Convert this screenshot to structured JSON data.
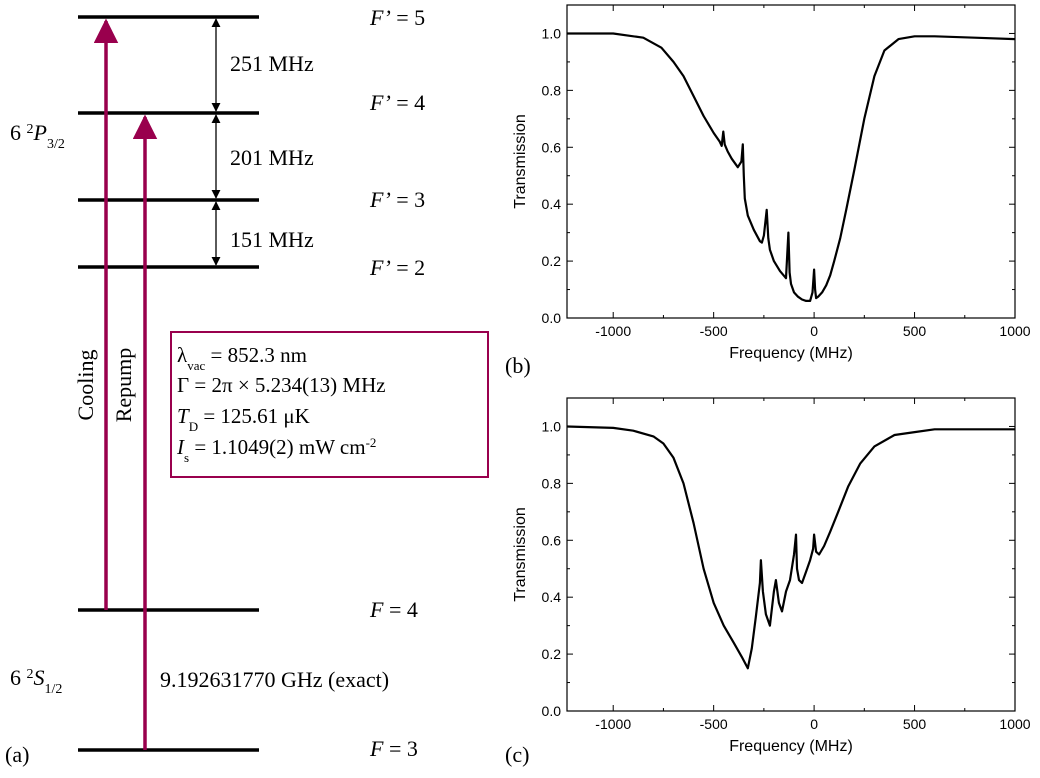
{
  "diagram": {
    "panel_label": "(a)",
    "excited_state": {
      "prefix": "6 ",
      "sup": "2",
      "letter": "P",
      "sub": "3/2"
    },
    "ground_state": {
      "prefix": "6 ",
      "sup": "2",
      "letter": "S",
      "sub": "1/2"
    },
    "levels": [
      {
        "name": "F’",
        "value": "5"
      },
      {
        "name": "F’",
        "value": "4"
      },
      {
        "name": "F’",
        "value": "3"
      },
      {
        "name": "F’",
        "value": "2"
      },
      {
        "name": "F",
        "value": "4"
      },
      {
        "name": "F",
        "value": "3"
      }
    ],
    "splittings": [
      "251 MHz",
      "201 MHz",
      "151 MHz"
    ],
    "ground_splitting": "9.192631770 GHz (exact)",
    "transitions": [
      "Cooling",
      "Repump"
    ],
    "colors": {
      "transition": "#99004d",
      "box": "#99004d",
      "level": "#000000"
    },
    "info_box": [
      {
        "sym": "λ",
        "sub": "vac",
        "eq": " = ",
        "val": "852.3 nm",
        "italic": false
      },
      {
        "sym": "Γ",
        "sub": "",
        "eq": "    = ",
        "val": "2π × 5.234(13) MHz",
        "italic": false
      },
      {
        "sym": "T",
        "sub": "D",
        "eq": " = ",
        "val": "125.61 μK",
        "italic": true
      },
      {
        "sym": "I",
        "sub": "s",
        "eq": "   = ",
        "val": "1.1049(2) mW cm",
        "sup": "-2",
        "italic": true
      }
    ]
  },
  "chart_data": [
    {
      "panel_label": "(b)",
      "type": "line",
      "xlabel": "Frequency (MHz)",
      "ylabel": "Transmission",
      "xlim": [
        -1230,
        1000
      ],
      "ylim": [
        0,
        1.1
      ],
      "xticks": [
        "-1000",
        "-500",
        "0",
        "500",
        "1000"
      ],
      "yticks": [
        "0.0",
        "0.2",
        "0.4",
        "0.6",
        "0.8",
        "1.0"
      ],
      "grid": false,
      "series": [
        {
          "x": [
            -1230,
            -1000,
            -850,
            -760,
            -700,
            -650,
            -600,
            -550,
            -500,
            -470,
            -460,
            -452,
            -445,
            -430,
            -410,
            -380,
            -362,
            -355,
            -350,
            -345,
            -330,
            -300,
            -270,
            -260,
            -250,
            -236,
            -228,
            -220,
            -200,
            -170,
            -140,
            -128,
            -122,
            -115,
            -100,
            -80,
            -60,
            -40,
            -20,
            -8,
            0,
            5,
            10,
            20,
            40,
            60,
            80,
            100,
            130,
            160,
            200,
            250,
            300,
            350,
            420,
            500,
            600,
            800,
            1000
          ],
          "y": [
            1.0,
            1.0,
            0.985,
            0.95,
            0.9,
            0.85,
            0.78,
            0.71,
            0.65,
            0.62,
            0.605,
            0.655,
            0.61,
            0.585,
            0.56,
            0.53,
            0.55,
            0.61,
            0.5,
            0.42,
            0.36,
            0.31,
            0.27,
            0.265,
            0.29,
            0.38,
            0.28,
            0.24,
            0.2,
            0.165,
            0.14,
            0.3,
            0.16,
            0.12,
            0.09,
            0.075,
            0.065,
            0.06,
            0.06,
            0.09,
            0.17,
            0.1,
            0.07,
            0.075,
            0.09,
            0.115,
            0.15,
            0.2,
            0.28,
            0.38,
            0.52,
            0.7,
            0.85,
            0.94,
            0.98,
            0.99,
            0.99,
            0.985,
            0.98
          ]
        }
      ]
    },
    {
      "panel_label": "(c)",
      "type": "line",
      "xlabel": "Frequency (MHz)",
      "ylabel": "Transmission",
      "xlim": [
        -1230,
        1000
      ],
      "ylim": [
        0,
        1.1
      ],
      "xticks": [
        "-1000",
        "-500",
        "0",
        "500",
        "1000"
      ],
      "yticks": [
        "0.0",
        "0.2",
        "0.4",
        "0.6",
        "0.8",
        "1.0"
      ],
      "grid": false,
      "series": [
        {
          "x": [
            -1230,
            -1000,
            -900,
            -800,
            -750,
            -700,
            -650,
            -600,
            -550,
            -500,
            -450,
            -400,
            -360,
            -330,
            -310,
            -290,
            -270,
            -265,
            -255,
            -240,
            -220,
            -200,
            -190,
            -175,
            -160,
            -140,
            -120,
            -100,
            -90,
            -85,
            -75,
            -60,
            -40,
            -20,
            -5,
            0,
            10,
            25,
            50,
            80,
            120,
            170,
            230,
            300,
            400,
            500,
            600,
            800,
            1000
          ],
          "y": [
            1.0,
            0.995,
            0.985,
            0.965,
            0.94,
            0.89,
            0.8,
            0.66,
            0.5,
            0.38,
            0.3,
            0.24,
            0.19,
            0.15,
            0.22,
            0.33,
            0.45,
            0.53,
            0.42,
            0.34,
            0.3,
            0.42,
            0.46,
            0.38,
            0.35,
            0.42,
            0.46,
            0.55,
            0.62,
            0.5,
            0.46,
            0.45,
            0.49,
            0.53,
            0.57,
            0.62,
            0.56,
            0.55,
            0.58,
            0.63,
            0.7,
            0.79,
            0.87,
            0.93,
            0.97,
            0.98,
            0.99,
            0.99,
            0.99
          ]
        }
      ]
    }
  ]
}
